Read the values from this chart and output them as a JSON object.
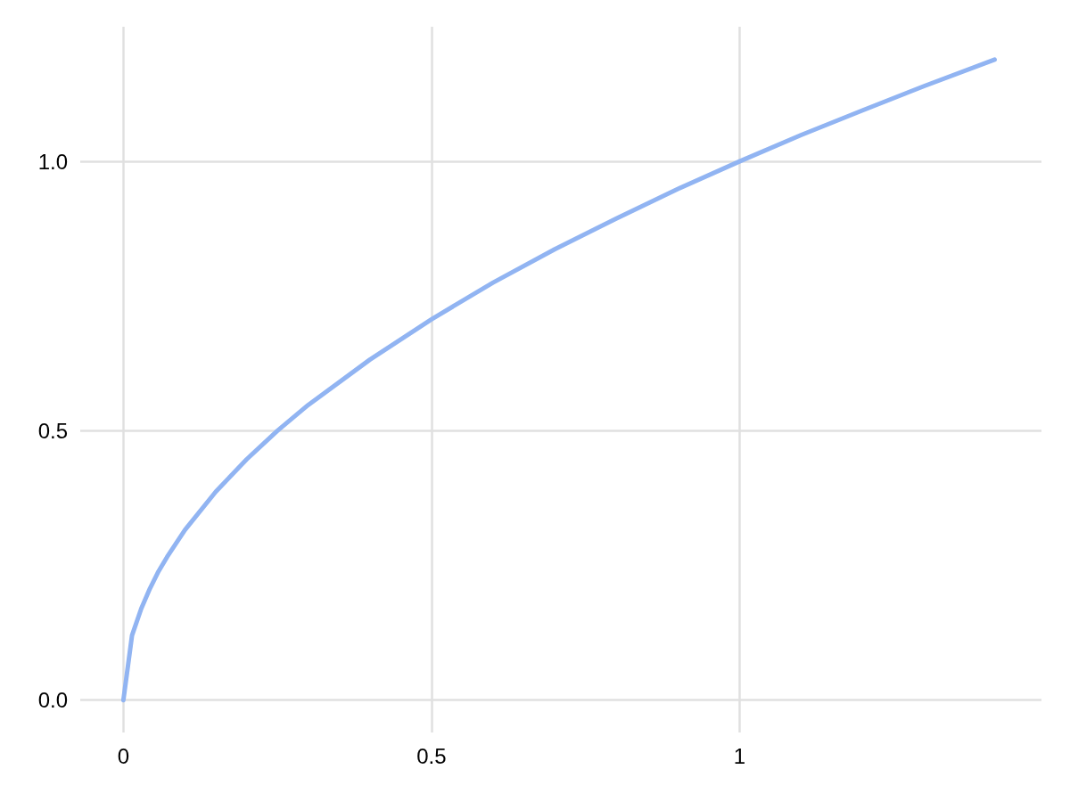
{
  "chart_data": {
    "type": "line",
    "x": [
      0,
      0.014,
      0.029,
      0.043,
      0.057,
      0.071,
      0.1,
      0.15,
      0.2,
      0.25,
      0.3,
      0.4,
      0.5,
      0.6,
      0.7,
      0.8,
      0.9,
      1.0,
      1.1,
      1.2,
      1.3,
      1.414
    ],
    "series": [
      {
        "color": "#91b4f2",
        "values": [
          0,
          0.12,
          0.17,
          0.207,
          0.239,
          0.266,
          0.316,
          0.387,
          0.447,
          0.5,
          0.548,
          0.632,
          0.707,
          0.775,
          0.837,
          0.894,
          0.949,
          1.0,
          1.049,
          1.095,
          1.14,
          1.189
        ]
      }
    ],
    "xlim": [
      -0.07,
      1.49
    ],
    "ylim": [
      -0.06,
      1.25
    ],
    "xticks": [
      0,
      0.5,
      1
    ],
    "yticks": [
      {
        "value": 0,
        "label": "0.0"
      },
      {
        "value": 0.5,
        "label": "0.5"
      },
      {
        "value": 1,
        "label": "1.0"
      }
    ],
    "grid": true,
    "marker": "none",
    "line_style": "solid"
  }
}
